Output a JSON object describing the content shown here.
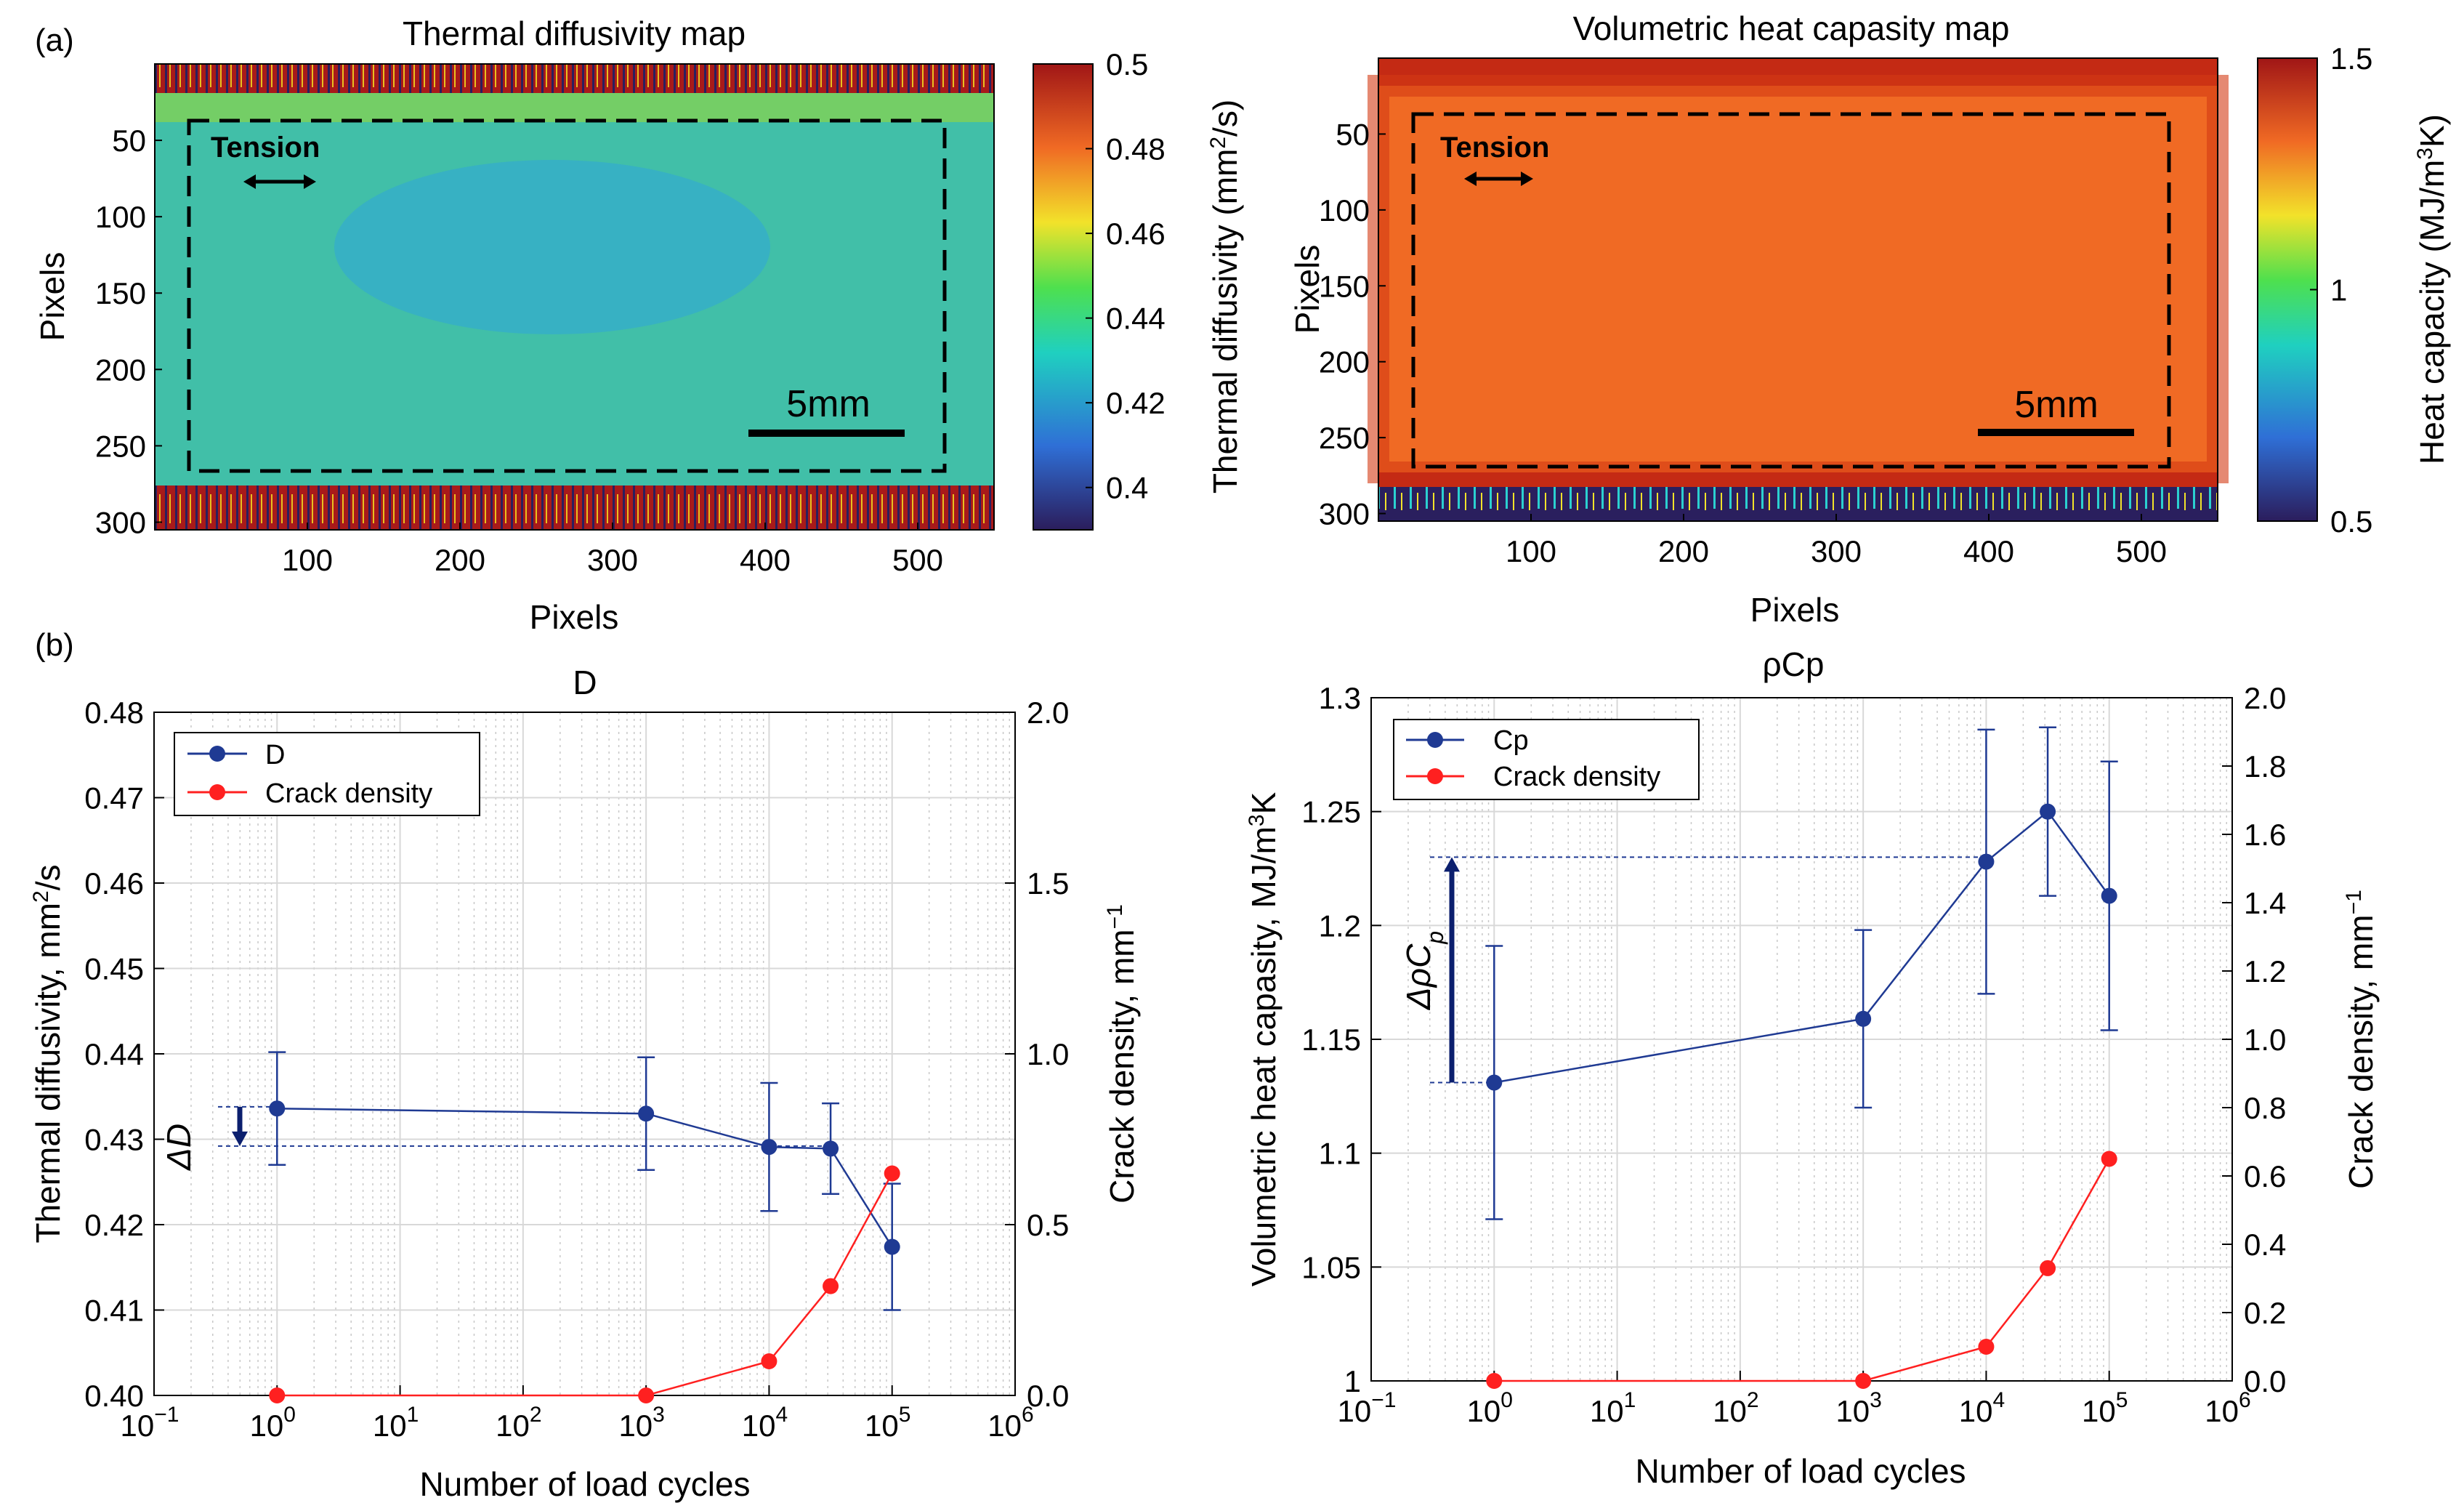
{
  "panel_labels": {
    "a": "(a)",
    "b": "(b)"
  },
  "maps": [
    {
      "title": "Thermal diffusivity map",
      "xlabel": "Pixels",
      "ylabel": "Pixels",
      "xticks": [
        "100",
        "200",
        "300",
        "400",
        "500"
      ],
      "yticks": [
        "50",
        "100",
        "150",
        "200",
        "250",
        "300"
      ],
      "annotation": "Tension",
      "scalebar": "5mm",
      "colorbar_ticks": [
        "0.5",
        "0.48",
        "0.46",
        "0.44",
        "0.42",
        "0.4"
      ],
      "colorbar_label": "Thermal diffusivity (mm",
      "colorbar_label_sup": "2",
      "colorbar_label_end": "/s)",
      "colors": {
        "specimen": "#41bfa8",
        "band": "#b02020",
        "background": "#2a1f5e"
      }
    },
    {
      "title": "Volumetric heat capasity map",
      "xlabel": "Pixels",
      "ylabel": "Pixels",
      "xticks": [
        "100",
        "200",
        "300",
        "400",
        "500"
      ],
      "yticks": [
        "50",
        "100",
        "150",
        "200",
        "250",
        "300"
      ],
      "annotation": "Tension",
      "scalebar": "5mm",
      "colorbar_ticks": [
        "1.5",
        "1",
        "0.5"
      ],
      "colorbar_label": "Heat capacity (MJ/m",
      "colorbar_label_sup": "3",
      "colorbar_label_end": "K)",
      "colors": {
        "specimen": "#f06a24",
        "band": "#d43a14",
        "background": "#2a1f5e"
      }
    }
  ],
  "chart_data": [
    {
      "type": "line",
      "title": "D",
      "xlabel": "Number of load cycles",
      "ylabel": "Thermal diffusivity, mm",
      "ylabel_sup": "2",
      "ylabel_end": "/s",
      "y2label": "Crack density, mm",
      "y2label_sup": "−1",
      "x_scale": "log",
      "xlim": [
        0.1,
        1000000
      ],
      "xtick_base": "10",
      "xtick_exponents": [
        "−1",
        "0",
        "1",
        "2",
        "3",
        "4",
        "5",
        "6"
      ],
      "ylim": [
        0.4,
        0.48
      ],
      "yticks": [
        "0.48",
        "0.47",
        "0.46",
        "0.45",
        "0.44",
        "0.43",
        "0.42",
        "0.41",
        "0.40"
      ],
      "y2lim": [
        0,
        2
      ],
      "y2ticks": [
        "2.0",
        "1.5",
        "1.0",
        "0.5",
        "0.0"
      ],
      "grid": true,
      "legend_position": "top-left",
      "series": [
        {
          "name": "D",
          "axis": "left",
          "color": "#1f3a93",
          "x": [
            1,
            1000,
            10000,
            31623,
            100000
          ],
          "y": [
            0.4336,
            0.433,
            0.4291,
            0.4289,
            0.4174
          ],
          "err": [
            0.0066,
            0.0066,
            0.0075,
            0.0053,
            0.0074
          ]
        },
        {
          "name": "Crack density",
          "axis": "right",
          "color": "#ff2020",
          "x": [
            1,
            1000,
            10000,
            31623,
            100000
          ],
          "y": [
            0.0,
            0.0,
            0.1,
            0.32,
            0.65
          ]
        }
      ],
      "annotation": {
        "label": "ΔD",
        "from": 0.4338,
        "to": 0.4292
      }
    },
    {
      "type": "line",
      "title": "ρCp",
      "xlabel": "Number of load cycles",
      "ylabel": "Volumetric heat capasity, MJ/m",
      "ylabel_sup": "3",
      "ylabel_end": "K",
      "y2label": "Crack density, mm",
      "y2label_sup": "−1",
      "x_scale": "log",
      "xlim": [
        0.1,
        1000000
      ],
      "xtick_base": "10",
      "xtick_exponents": [
        "−1",
        "0",
        "1",
        "2",
        "3",
        "4",
        "5",
        "6"
      ],
      "ylim": [
        1.0,
        1.3
      ],
      "yticks": [
        "1.3",
        "1.25",
        "1.2",
        "1.15",
        "1.1",
        "1.05",
        "1"
      ],
      "y2lim": [
        0,
        2
      ],
      "y2ticks": [
        "2.0",
        "1.8",
        "1.6",
        "1.4",
        "1.2",
        "1.0",
        "0.8",
        "0.6",
        "0.4",
        "0.2",
        "0.0"
      ],
      "grid": true,
      "legend_position": "top-left",
      "series": [
        {
          "name": "Cp",
          "axis": "left",
          "color": "#1f3a93",
          "x": [
            1,
            1000,
            10000,
            31623,
            100000
          ],
          "y": [
            1.131,
            1.159,
            1.228,
            1.25,
            1.213
          ],
          "err": [
            0.06,
            0.039,
            0.058,
            0.037,
            0.059
          ]
        },
        {
          "name": "Crack density",
          "axis": "right",
          "color": "#ff2020",
          "x": [
            1,
            1000,
            10000,
            31623,
            100000
          ],
          "y": [
            0.0,
            0.0,
            0.1,
            0.33,
            0.65
          ]
        }
      ],
      "annotation": {
        "label": "ΔρC",
        "label_sub": "p",
        "from": 1.131,
        "to": 1.23
      }
    }
  ]
}
